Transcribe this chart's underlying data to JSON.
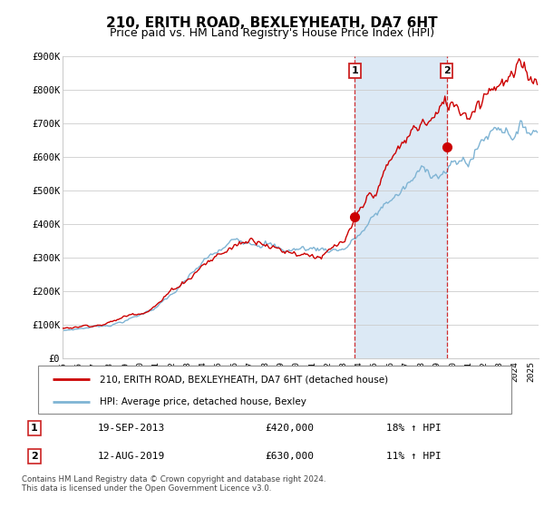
{
  "title": "210, ERITH ROAD, BEXLEYHEATH, DA7 6HT",
  "subtitle": "Price paid vs. HM Land Registry's House Price Index (HPI)",
  "ylim": [
    0,
    900000
  ],
  "yticks": [
    0,
    100000,
    200000,
    300000,
    400000,
    500000,
    600000,
    700000,
    800000,
    900000
  ],
  "ytick_labels": [
    "£0",
    "£100K",
    "£200K",
    "£300K",
    "£400K",
    "£500K",
    "£600K",
    "£700K",
    "£800K",
    "£900K"
  ],
  "xlim_start": 1995.0,
  "xlim_end": 2025.5,
  "sale1_x": 2013.72,
  "sale1_y": 420000,
  "sale2_x": 2019.62,
  "sale2_y": 630000,
  "sale1_label": "19-SEP-2013",
  "sale1_price": "£420,000",
  "sale1_hpi": "18% ↑ HPI",
  "sale2_label": "12-AUG-2019",
  "sale2_price": "£630,000",
  "sale2_hpi": "11% ↑ HPI",
  "legend_line1": "210, ERITH ROAD, BEXLEYHEATH, DA7 6HT (detached house)",
  "legend_line2": "HPI: Average price, detached house, Bexley",
  "footer": "Contains HM Land Registry data © Crown copyright and database right 2024.\nThis data is licensed under the Open Government Licence v3.0.",
  "red_color": "#cc0000",
  "blue_color": "#7fb4d4",
  "shade_color": "#dce9f5",
  "title_fontsize": 11,
  "subtitle_fontsize": 9
}
